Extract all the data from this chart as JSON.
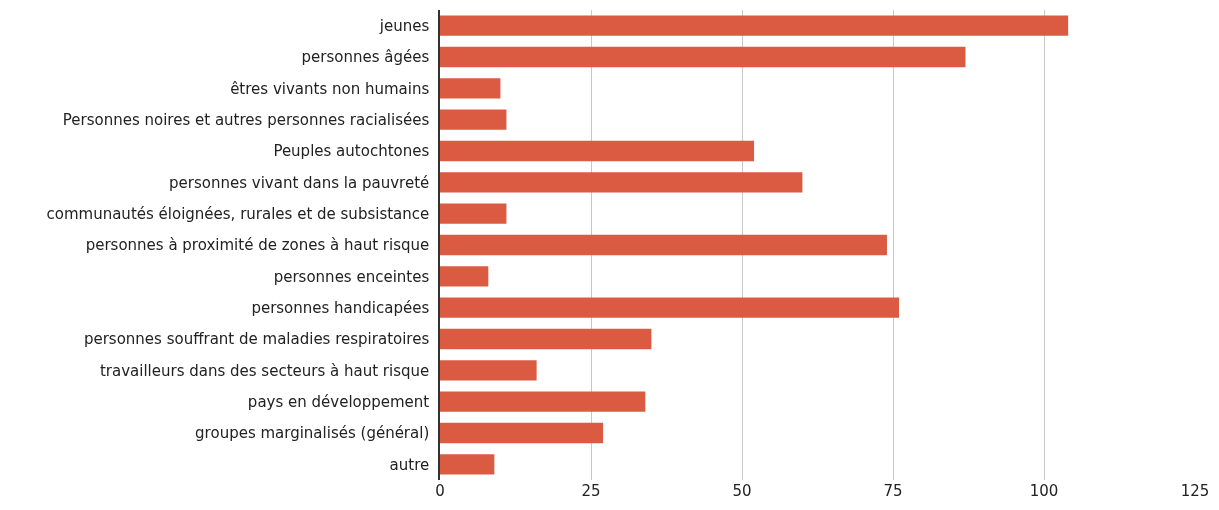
{
  "chart_data": {
    "type": "bar",
    "orientation": "horizontal",
    "categories": [
      "jeunes",
      "personnes âgées",
      "êtres vivants non humains",
      "Personnes noires et autres personnes racialisées",
      "Peuples autochtones",
      "personnes vivant dans la pauvreté",
      "communautés éloignées, rurales et de subsistance",
      "personnes à proximité de zones à haut risque",
      "personnes enceintes",
      "personnes handicapées",
      "personnes souffrant de maladies respiratoires",
      "travailleurs dans des secteurs à haut risque",
      "pays en développement",
      "groupes marginalisés (général)",
      "autre"
    ],
    "values": [
      104,
      87,
      10,
      11,
      52,
      60,
      11,
      74,
      8,
      76,
      35,
      16,
      34,
      27,
      9
    ],
    "color": "#da5b42",
    "xlim": [
      0,
      125
    ],
    "xticks": [
      0,
      25,
      50,
      75,
      100,
      125
    ],
    "grid": "x",
    "legend": false
  }
}
